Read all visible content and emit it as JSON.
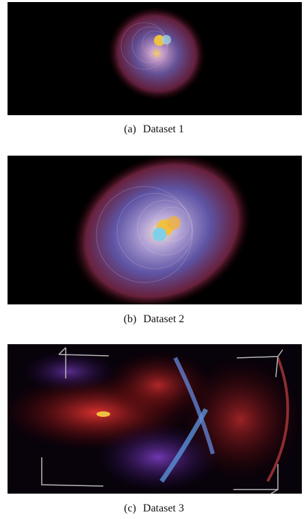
{
  "figures": [
    {
      "label": "(a)",
      "caption": "Dataset 1"
    },
    {
      "label": "(b)",
      "caption": "Dataset 2"
    },
    {
      "label": "(c)",
      "caption": "Dataset 3"
    }
  ]
}
